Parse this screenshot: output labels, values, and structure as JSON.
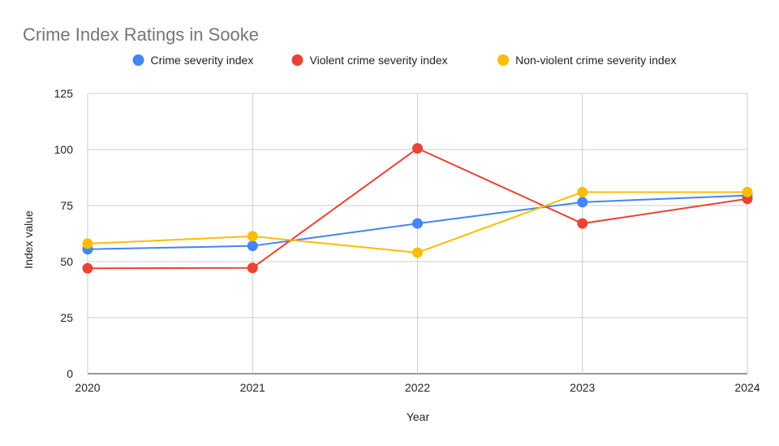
{
  "chart_data": {
    "type": "line",
    "title": "Crime Index Ratings in Sooke",
    "xlabel": "Year",
    "ylabel": "Index value",
    "categories": [
      "2020",
      "2021",
      "2022",
      "2023",
      "2024"
    ],
    "ylim": [
      0,
      125
    ],
    "yticks": [
      0,
      25,
      50,
      75,
      100,
      125
    ],
    "grid": true,
    "legend_position": "top",
    "series": [
      {
        "name": "Crime severity index",
        "color": "#4285F4",
        "values": [
          55.5,
          57,
          67,
          76.5,
          79.5
        ]
      },
      {
        "name": "Violent crime severity index",
        "color": "#EA4335",
        "values": [
          47,
          47.2,
          100.5,
          67,
          78
        ]
      },
      {
        "name": "Non-violent crime severity index",
        "color": "#FBBC04",
        "values": [
          58,
          61.3,
          54,
          81,
          81
        ]
      }
    ]
  }
}
